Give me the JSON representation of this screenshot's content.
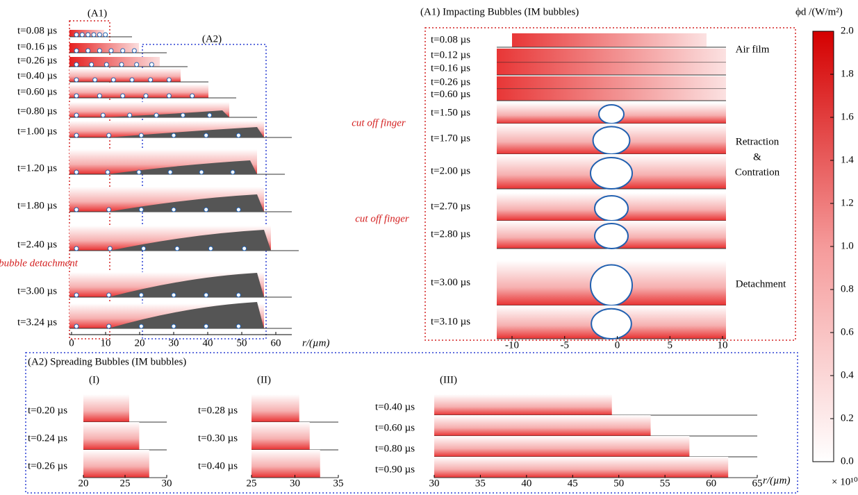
{
  "left": {
    "panel_a1": "(A1)",
    "panel_a2": "(A2)",
    "times": [
      "t=0.08 µs",
      "t=0.16 µs",
      "t=0.26 µs",
      "t=0.40 µs",
      "t=0.60 µs",
      "t=0.80 µs",
      "t=1.00 µs",
      "t=1.20 µs",
      "t=1.80 µs",
      "t=2.40 µs",
      "t=3.00 µs",
      "t=3.24 µs"
    ],
    "axis": {
      "lim": [
        0,
        60
      ],
      "ticks": [
        0,
        10,
        20,
        30,
        40,
        50,
        60
      ],
      "label": "r/(µm)"
    },
    "annotations": {
      "cut_off_1": "cut off finger",
      "cut_off_2": "cut off finger",
      "detachment": "bubble detachment"
    }
  },
  "right": {
    "title": "(A1) Impacting Bubbles (IM bubbles)",
    "times": [
      "t=0.08 µs",
      "t=0.12 µs",
      "t=0.16 µs",
      "t=0.26 µs",
      "t=0.60 µs",
      "t=1.50 µs",
      "t=1.70 µs",
      "t=2.00 µs",
      "t=2.70 µs",
      "t=2.80 µs",
      "t=3.00 µs",
      "t=3.10 µs"
    ],
    "axis": {
      "lim": [
        -10,
        10
      ],
      "ticks": [
        -10,
        -5,
        0,
        5,
        10
      ]
    },
    "stages": [
      "Air film",
      "Retraction",
      "&",
      "Contration",
      "Detachment"
    ]
  },
  "colorbar": {
    "title": "ϕd /(W/m²)",
    "lim": [
      0,
      2
    ],
    "ticks": [
      {
        "value": 0,
        "label": "0.0"
      },
      {
        "value": 0.2,
        "label": "0.2"
      },
      {
        "value": 0.4,
        "label": "0.4"
      },
      {
        "value": 0.6,
        "label": "0.6"
      },
      {
        "value": 0.8,
        "label": "0.8"
      },
      {
        "value": 1,
        "label": "1.0"
      },
      {
        "value": 1.2,
        "label": "1.2"
      },
      {
        "value": 1.4,
        "label": "1.4"
      },
      {
        "value": 1.6,
        "label": "1.6"
      },
      {
        "value": 1.8,
        "label": "1.8"
      },
      {
        "value": 2,
        "label": "2.0"
      }
    ],
    "scale": "× 10¹⁰"
  },
  "bottom": {
    "title": "(A2) Spreading Bubbles (IM bubbles)",
    "panels": [
      {
        "label": "(I)",
        "times": [
          "t=0.20 µs",
          "t=0.24 µs",
          "t=0.26 µs"
        ],
        "lim": [
          20,
          30
        ],
        "ticks": [
          20,
          25,
          30
        ]
      },
      {
        "label": "(II)",
        "times": [
          "t=0.28 µs",
          "t=0.30 µs",
          "t=0.40 µs"
        ],
        "lim": [
          25,
          35
        ],
        "ticks": [
          25,
          30,
          35
        ]
      },
      {
        "label": "(III)",
        "times": [
          "t=0.40 µs",
          "t=0.60 µs",
          "t=0.80 µs",
          "t=0.90 µs"
        ],
        "lim": [
          30,
          65
        ],
        "ticks": [
          30,
          35,
          40,
          45,
          50,
          55,
          60,
          65
        ],
        "axis_label": "r/(µm)"
      }
    ]
  }
}
